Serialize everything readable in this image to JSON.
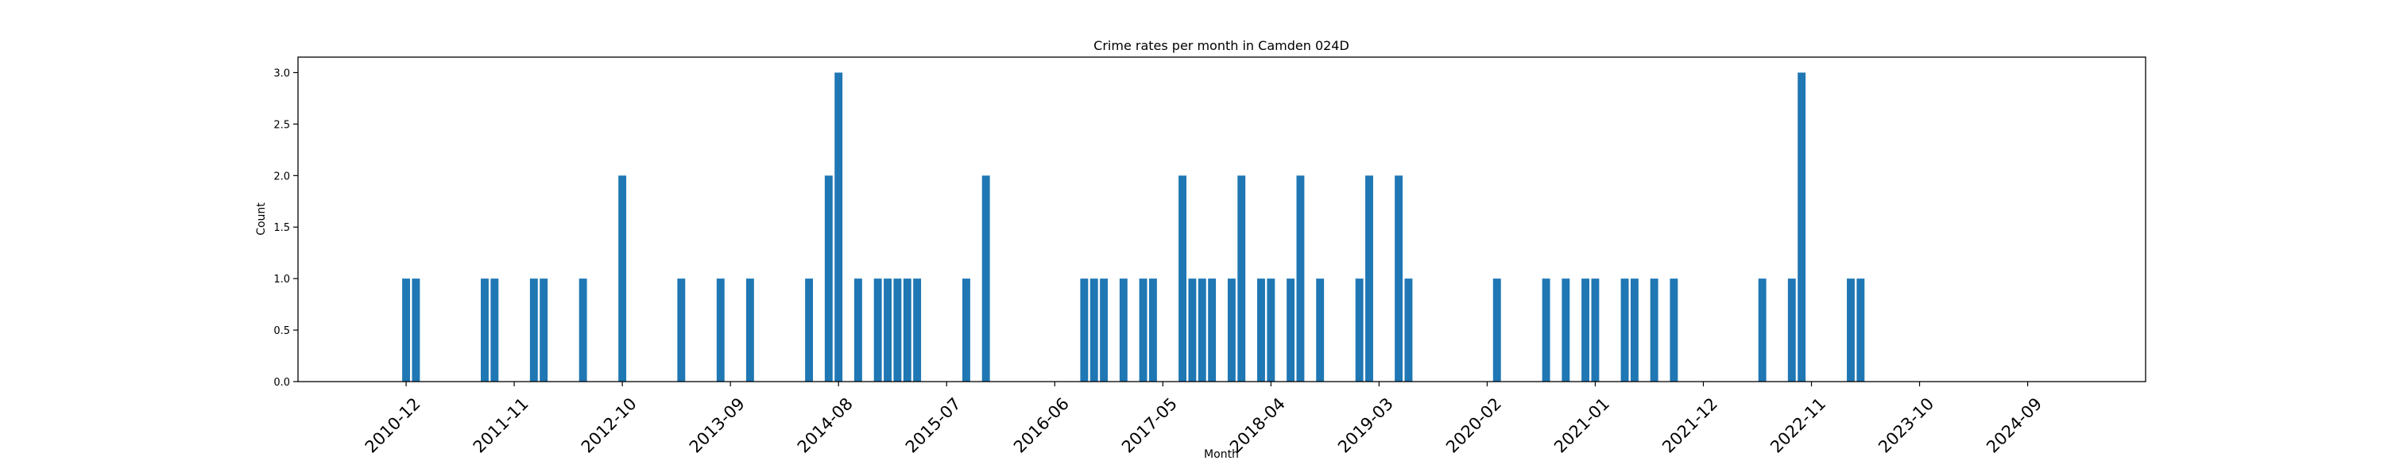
{
  "chart_data": {
    "type": "bar",
    "title": "Crime rates per month in Camden 024D",
    "xlabel": "Month",
    "ylabel": "Count",
    "ylim": [
      0,
      3.15
    ],
    "yticks": [
      "0.0",
      "0.5",
      "1.0",
      "1.5",
      "2.0",
      "2.5",
      "3.0"
    ],
    "xticks": [
      "2010-12",
      "2011-11",
      "2012-10",
      "2013-09",
      "2014-08",
      "2015-07",
      "2016-06",
      "2017-05",
      "2018-04",
      "2019-03",
      "2020-02",
      "2021-01",
      "2021-12",
      "2022-11",
      "2023-10",
      "2024-09"
    ],
    "xlim": [
      "2010-01",
      "2025-09"
    ],
    "color": "#1f77b4",
    "grid": false,
    "categories": [
      "2010-12",
      "2011-01",
      "2011-08",
      "2011-09",
      "2012-01",
      "2012-02",
      "2012-06",
      "2012-10",
      "2013-04",
      "2013-08",
      "2013-11",
      "2014-05",
      "2014-07",
      "2014-08",
      "2014-10",
      "2014-12",
      "2015-01",
      "2015-02",
      "2015-03",
      "2015-04",
      "2015-09",
      "2015-11",
      "2016-09",
      "2016-10",
      "2016-11",
      "2017-01",
      "2017-03",
      "2017-04",
      "2017-07",
      "2017-08",
      "2017-09",
      "2017-10",
      "2017-12",
      "2018-01",
      "2018-03",
      "2018-04",
      "2018-06",
      "2018-07",
      "2018-09",
      "2019-01",
      "2019-02",
      "2019-05",
      "2019-06",
      "2020-03",
      "2020-08",
      "2020-10",
      "2020-12",
      "2021-01",
      "2021-04",
      "2021-05",
      "2021-07",
      "2021-09",
      "2022-06",
      "2022-09",
      "2022-10",
      "2023-03",
      "2023-04"
    ],
    "values": [
      1,
      1,
      1,
      1,
      1,
      1,
      1,
      2,
      1,
      1,
      1,
      1,
      2,
      3,
      1,
      1,
      1,
      1,
      1,
      1,
      1,
      2,
      1,
      1,
      1,
      1,
      1,
      1,
      2,
      1,
      1,
      1,
      1,
      2,
      1,
      1,
      1,
      2,
      1,
      1,
      2,
      2,
      1,
      1,
      1,
      1,
      1,
      1,
      1,
      1,
      1,
      1,
      1,
      1,
      3,
      1,
      1
    ]
  }
}
